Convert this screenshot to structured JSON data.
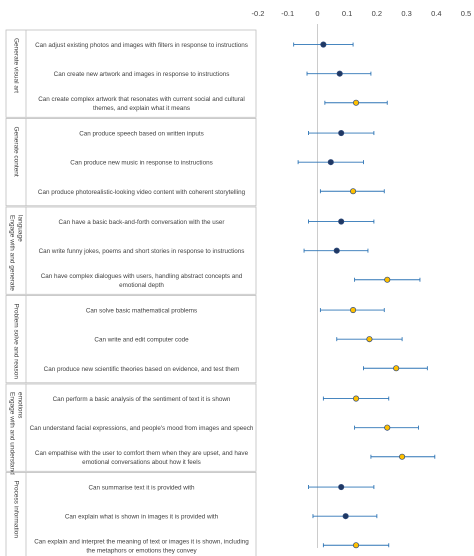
{
  "chart_data": {
    "type": "scatter",
    "x_ticks": [
      "-0.2",
      "-0.1",
      "0",
      "0.1",
      "0.2",
      "0.3",
      "0.4",
      "0.5"
    ],
    "xlim": [
      -0.2,
      0.5
    ],
    "groups": [
      {
        "name": "Generate visual art",
        "items": [
          {
            "label": "Can adjust existing photos and images with filters in response to instructions",
            "value": 0.02,
            "ci": [
              -0.08,
              0.12
            ],
            "color": "#1f3864"
          },
          {
            "label": "Can create new artwork and images in response to instructions",
            "value": 0.075,
            "ci": [
              -0.035,
              0.18
            ],
            "color": "#1f3864"
          },
          {
            "label": "Can create complex artwork that resonates with current social and cultural themes, and explain what it means",
            "value": 0.13,
            "ci": [
              0.025,
              0.235
            ],
            "color": "#ffc000"
          }
        ]
      },
      {
        "name": "Generate content",
        "items": [
          {
            "label": "Can produce speech based on written inputs",
            "value": 0.08,
            "ci": [
              -0.03,
              0.19
            ],
            "color": "#1f3864"
          },
          {
            "label": "Can produce new music in response to instructions",
            "value": 0.045,
            "ci": [
              -0.065,
              0.155
            ],
            "color": "#1f3864"
          },
          {
            "label": "Can produce photorealistic-looking video content with coherent storytelling",
            "value": 0.12,
            "ci": [
              0.01,
              0.225
            ],
            "color": "#ffc000"
          }
        ]
      },
      {
        "name": "Engage with and generate language",
        "items": [
          {
            "label": "Can have a basic back-and-forth conversation with the user",
            "value": 0.08,
            "ci": [
              -0.03,
              0.19
            ],
            "color": "#1f3864"
          },
          {
            "label": "Can write funny jokes, poems and short stories in response to instructions",
            "value": 0.065,
            "ci": [
              -0.045,
              0.17
            ],
            "color": "#1f3864"
          },
          {
            "label": "Can have complex dialogues with users, handling abstract concepts and emotional depth",
            "value": 0.235,
            "ci": [
              0.125,
              0.345
            ],
            "color": "#ffc000"
          }
        ]
      },
      {
        "name": "Problem solve and reason",
        "items": [
          {
            "label": "Can solve basic mathematical problems",
            "value": 0.12,
            "ci": [
              0.01,
              0.225
            ],
            "color": "#ffc000"
          },
          {
            "label": "Can write and edit computer code",
            "value": 0.175,
            "ci": [
              0.065,
              0.285
            ],
            "color": "#ffc000"
          },
          {
            "label": "Can produce new scientific theories based on evidence, and test them",
            "value": 0.265,
            "ci": [
              0.155,
              0.37
            ],
            "color": "#ffc000"
          }
        ]
      },
      {
        "name": "Engage with and understand emotions",
        "items": [
          {
            "label": "Can perform a basic analysis of the sentiment of text it is shown",
            "value": 0.13,
            "ci": [
              0.02,
              0.24
            ],
            "color": "#ffc000"
          },
          {
            "label": "Can understand facial expressions, and people's mood from images and speech",
            "value": 0.235,
            "ci": [
              0.125,
              0.34
            ],
            "color": "#ffc000"
          },
          {
            "label": "Can empathise with the user to comfort them when they are upset, and have emotional conversations about how it feels",
            "value": 0.285,
            "ci": [
              0.18,
              0.395
            ],
            "color": "#ffc000"
          }
        ]
      },
      {
        "name": "Process information",
        "items": [
          {
            "label": "Can summarise text it is provided with",
            "value": 0.08,
            "ci": [
              -0.03,
              0.19
            ],
            "color": "#1f3864"
          },
          {
            "label": "Can explain what is shown in images it is provided with",
            "value": 0.095,
            "ci": [
              -0.015,
              0.2
            ],
            "color": "#1f3864"
          },
          {
            "label": "Can explain and interpret the meaning of text or images it is shown, including the metaphors or emotions they convey",
            "value": 0.13,
            "ci": [
              0.02,
              0.24
            ],
            "color": "#ffc000"
          }
        ]
      }
    ]
  }
}
